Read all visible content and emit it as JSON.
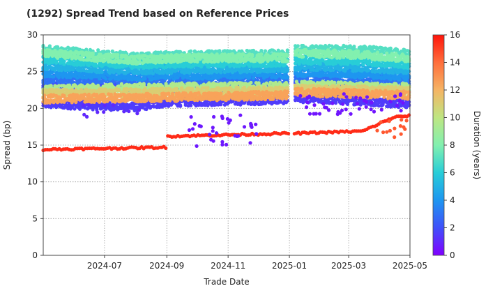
{
  "chart_data": {
    "type": "scatter",
    "title": "(1292)   Spread Trend based on Reference Prices",
    "xlabel": "Trade Date",
    "ylabel": "Spread (bp)",
    "x_ticks": [
      "2024-07",
      "2024-09",
      "2024-11",
      "2025-01",
      "2025-03",
      "2025-05"
    ],
    "xlim": [
      "2024-05-01",
      "2025-05-01"
    ],
    "y_ticks": [
      "0",
      "5",
      "10",
      "15",
      "20",
      "25",
      "30"
    ],
    "ylim": [
      0,
      30
    ],
    "grid": true,
    "colorbar": {
      "label": "Duration (years)",
      "ticks": [
        "0",
        "2",
        "4",
        "6",
        "8",
        "10",
        "12",
        "14",
        "16"
      ],
      "range": [
        0,
        16
      ],
      "colormap": "rainbow"
    },
    "bands": [
      {
        "duration": 15.5,
        "points": [
          [
            "2024-05-01",
            14.4
          ],
          [
            "2024-08-31",
            14.7
          ],
          [
            "2024-09-01",
            16.2
          ],
          [
            "2024-12-31",
            16.6
          ],
          [
            "2025-01-06",
            16.6
          ],
          [
            "2025-03-15",
            16.9
          ],
          [
            "2025-04-15",
            18.8
          ],
          [
            "2025-05-01",
            19.0
          ]
        ]
      },
      {
        "duration": 12.5,
        "points": [
          [
            "2024-05-01",
            21.3
          ],
          [
            "2024-09-01",
            21.5
          ],
          [
            "2024-12-31",
            21.8
          ],
          [
            "2025-01-06",
            22.2
          ],
          [
            "2025-03-15",
            22.0
          ],
          [
            "2025-05-01",
            21.8
          ]
        ]
      },
      {
        "duration": 11.0,
        "points": [
          [
            "2024-05-01",
            22.0
          ],
          [
            "2024-09-01",
            22.2
          ],
          [
            "2024-12-31",
            22.4
          ],
          [
            "2025-01-06",
            22.6
          ],
          [
            "2025-03-15",
            22.5
          ],
          [
            "2025-05-01",
            22.3
          ]
        ]
      },
      {
        "duration": 9.5,
        "points": [
          [
            "2024-05-01",
            22.6
          ],
          [
            "2024-09-01",
            22.9
          ],
          [
            "2024-12-31",
            23.0
          ],
          [
            "2025-01-06",
            23.2
          ],
          [
            "2025-03-15",
            23.0
          ],
          [
            "2025-05-01",
            22.8
          ]
        ]
      },
      {
        "duration": 8.0,
        "points": [
          [
            "2024-05-01",
            27.5
          ],
          [
            "2024-08-01",
            26.6
          ],
          [
            "2024-09-01",
            26.8
          ],
          [
            "2024-12-31",
            26.9
          ],
          [
            "2025-01-06",
            27.5
          ],
          [
            "2025-03-15",
            27.3
          ],
          [
            "2025-05-01",
            26.8
          ]
        ]
      },
      {
        "duration": 7.0,
        "points": [
          [
            "2024-05-01",
            28.0
          ],
          [
            "2024-08-01",
            27.0
          ],
          [
            "2024-09-01",
            27.2
          ],
          [
            "2024-12-31",
            27.4
          ],
          [
            "2025-01-06",
            28.0
          ],
          [
            "2025-03-15",
            28.0
          ],
          [
            "2025-05-01",
            27.4
          ]
        ]
      },
      {
        "duration": 6.0,
        "points": [
          [
            "2024-05-01",
            26.7
          ],
          [
            "2024-08-01",
            26.0
          ],
          [
            "2024-09-01",
            26.1
          ],
          [
            "2024-12-31",
            26.3
          ],
          [
            "2025-01-06",
            26.6
          ],
          [
            "2025-03-15",
            26.5
          ],
          [
            "2025-05-01",
            26.0
          ]
        ]
      },
      {
        "duration": 5.0,
        "points": [
          [
            "2024-05-01",
            25.8
          ],
          [
            "2024-08-01",
            25.2
          ],
          [
            "2024-09-01",
            25.3
          ],
          [
            "2024-12-31",
            25.5
          ],
          [
            "2025-01-06",
            25.8
          ],
          [
            "2025-03-15",
            25.6
          ],
          [
            "2025-05-01",
            25.2
          ]
        ]
      },
      {
        "duration": 4.0,
        "points": [
          [
            "2024-05-01",
            24.8
          ],
          [
            "2024-08-01",
            24.4
          ],
          [
            "2024-09-01",
            24.5
          ],
          [
            "2024-12-31",
            24.7
          ],
          [
            "2025-01-06",
            24.9
          ],
          [
            "2025-03-15",
            24.7
          ],
          [
            "2025-05-01",
            24.3
          ]
        ]
      },
      {
        "duration": 3.0,
        "points": [
          [
            "2024-05-01",
            24.0
          ],
          [
            "2024-09-01",
            23.8
          ],
          [
            "2024-12-31",
            24.0
          ],
          [
            "2025-01-06",
            24.2
          ],
          [
            "2025-03-15",
            24.0
          ],
          [
            "2025-05-01",
            23.6
          ]
        ]
      },
      {
        "duration": 2.0,
        "points": [
          [
            "2024-05-01",
            23.0
          ],
          [
            "2024-09-01",
            22.8
          ],
          [
            "2024-12-31",
            23.1
          ],
          [
            "2025-01-06",
            23.4
          ],
          [
            "2025-03-15",
            23.1
          ],
          [
            "2025-05-01",
            22.6
          ]
        ]
      },
      {
        "duration": 1.5,
        "points": [
          [
            "2024-05-01",
            20.6
          ],
          [
            "2024-08-01",
            20.2
          ],
          [
            "2024-09-01",
            20.8
          ],
          [
            "2024-12-31",
            21.2
          ],
          [
            "2025-01-06",
            21.4
          ],
          [
            "2025-03-15",
            21.0
          ],
          [
            "2025-05-01",
            20.6
          ]
        ]
      }
    ],
    "clusters": [
      {
        "duration": 0.6,
        "start": "2024-09-20",
        "end": "2024-11-30",
        "y_min": 14.8,
        "y_max": 19.2,
        "n": 34
      },
      {
        "duration": 0.5,
        "start": "2025-01-10",
        "end": "2025-05-01",
        "y_min": 19.2,
        "y_max": 22.0,
        "n": 46
      },
      {
        "duration": 1.0,
        "start": "2024-06-10",
        "end": "2024-08-10",
        "y_min": 18.8,
        "y_max": 20.5,
        "n": 12
      },
      {
        "duration": 14.5,
        "start": "2025-03-25",
        "end": "2025-05-01",
        "y_min": 16.0,
        "y_max": 18.6,
        "n": 14
      }
    ]
  }
}
